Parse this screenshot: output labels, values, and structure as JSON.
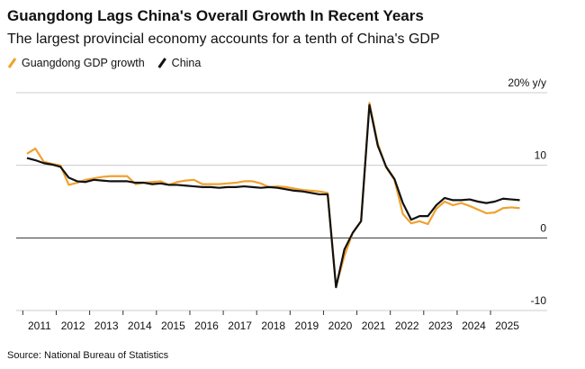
{
  "chart_data": {
    "type": "line",
    "title": "Guangdong Lags China's Overall Growth In Recent Years",
    "subtitle": "The largest provincial economy accounts for a tenth of China's GDP",
    "source": "Source: National Bureau of Statistics",
    "categories": [
      null,
      "2011",
      null,
      null,
      null,
      "2012",
      null,
      null,
      null,
      "2013",
      null,
      null,
      null,
      "2014",
      null,
      null,
      null,
      "2015",
      null,
      null,
      null,
      "2016",
      null,
      null,
      null,
      "2017",
      null,
      null,
      null,
      "2018",
      null,
      null,
      null,
      "2019",
      null,
      null,
      null,
      "2020",
      null,
      null,
      null,
      "2021",
      null,
      null,
      null,
      "2022",
      null,
      null,
      null,
      "2023",
      null,
      null,
      null,
      "2024",
      null,
      null,
      null,
      "2025",
      null,
      null
    ],
    "series": [
      {
        "name": "Guangdong GDP growth",
        "color": "#f0a12f",
        "values": [
          11.6,
          12.3,
          10.5,
          10.2,
          10.0,
          7.3,
          7.6,
          8.0,
          8.2,
          8.4,
          8.5,
          8.5,
          8.5,
          7.4,
          7.6,
          7.7,
          7.8,
          7.3,
          7.7,
          7.9,
          8.0,
          7.4,
          7.4,
          7.4,
          7.5,
          7.6,
          7.8,
          7.8,
          7.5,
          7.0,
          7.1,
          7.0,
          6.8,
          6.6,
          6.5,
          6.4,
          6.2,
          -6.7,
          -2.5,
          0.7,
          2.3,
          18.6,
          13.0,
          9.7,
          8.0,
          3.3,
          2.0,
          2.3,
          1.9,
          4.0,
          5.0,
          4.5,
          4.8,
          4.4,
          3.9,
          3.4,
          3.5,
          4.1,
          4.2,
          4.1
        ]
      },
      {
        "name": "China",
        "color": "#111111",
        "values": [
          11.0,
          10.7,
          10.3,
          10.1,
          9.8,
          8.3,
          7.8,
          7.7,
          8.0,
          7.9,
          7.8,
          7.8,
          7.8,
          7.6,
          7.6,
          7.4,
          7.5,
          7.3,
          7.3,
          7.2,
          7.1,
          7.0,
          7.0,
          6.9,
          7.0,
          7.0,
          7.1,
          7.0,
          6.9,
          7.0,
          6.9,
          6.7,
          6.5,
          6.4,
          6.2,
          6.0,
          6.0,
          -6.8,
          -1.6,
          0.7,
          2.3,
          18.3,
          12.7,
          9.8,
          8.1,
          4.8,
          2.5,
          3.0,
          3.0,
          4.5,
          5.5,
          5.2,
          5.2,
          5.3,
          5.0,
          4.8,
          5.0,
          5.4,
          5.3,
          5.2
        ]
      }
    ],
    "ylim": [
      -10,
      20
    ],
    "yticks": [
      {
        "value": 20,
        "label": "20% y/y"
      },
      10,
      0,
      -10
    ],
    "grid": true
  }
}
